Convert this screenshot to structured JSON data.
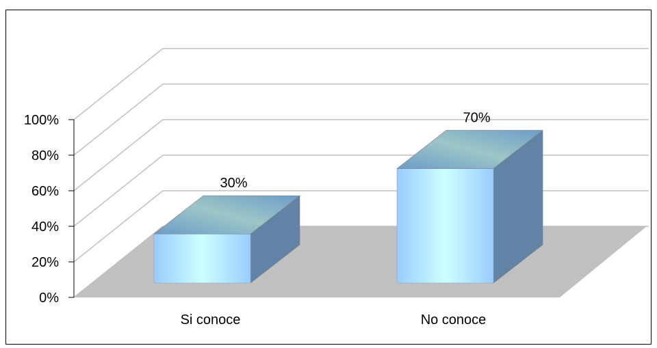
{
  "chart_data": {
    "type": "bar",
    "style": "3d-column",
    "categories": [
      "Si conoce",
      "No conoce"
    ],
    "values": [
      30,
      70
    ],
    "data_labels": [
      "30%",
      "70%"
    ],
    "ylim": [
      0,
      100
    ],
    "y_ticks": [
      "0%",
      "20%",
      "40%",
      "60%",
      "80%",
      "100%"
    ],
    "grid": true,
    "legend": "none",
    "colors": {
      "bar_front_edge": "#99ccff",
      "bar_front_center": "#ccffff",
      "bar_side": "#6183a6",
      "bar_top_a": "#6d9cc9",
      "bar_top_b": "#9cc6c6",
      "floor": "#c0c0c0",
      "gridline": "#c0c0c0"
    }
  }
}
